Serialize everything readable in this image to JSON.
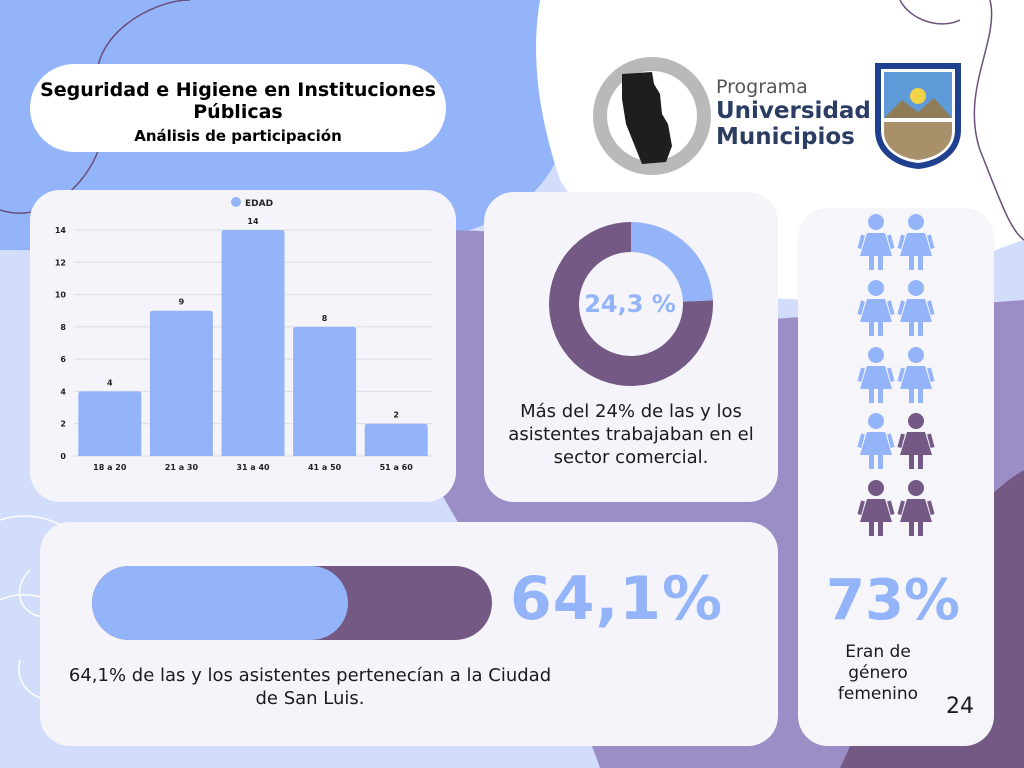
{
  "title": {
    "line1": "Seguridad e Higiene en Instituciones Públicas",
    "line2": "Análisis de participación"
  },
  "logo": {
    "line1": "Programa",
    "line2": "Universidad y",
    "line3": "Municipios"
  },
  "chart_data": {
    "type": "bar",
    "title": "",
    "legend": "EDAD",
    "legend_position": "top",
    "categories": [
      "18 a 20",
      "21 a 30",
      "31 a 40",
      "41 a 50",
      "51 a 60"
    ],
    "series": [
      {
        "name": "EDAD",
        "values": [
          4,
          9,
          14,
          8,
          2
        ]
      }
    ],
    "yticks": [
      0,
      2,
      4,
      6,
      8,
      10,
      12,
      14
    ],
    "ylim": [
      0,
      14
    ],
    "grid": true,
    "color": "#94b4fa"
  },
  "donut": {
    "value": 24.3,
    "label": "24,3 %",
    "caption": "Más del 24% de las y los asistentes trabajaban en el sector comercial.",
    "fill_color": "#94b4fa",
    "rest_color": "#735983"
  },
  "progress": {
    "value": 64.1,
    "label": "64,1%",
    "caption": "64,1% de las y los asistentes pertenecían a la Ciudad de San Luis."
  },
  "gender": {
    "label": "73%",
    "caption": "Eran de género femenino",
    "icons_total": 10,
    "icons_highlighted": 7,
    "highlight_color": "#94b4fa",
    "other_color": "#735983"
  },
  "page_number": "24",
  "colors": {
    "accent": "#94b4fa",
    "purple": "#735983"
  }
}
